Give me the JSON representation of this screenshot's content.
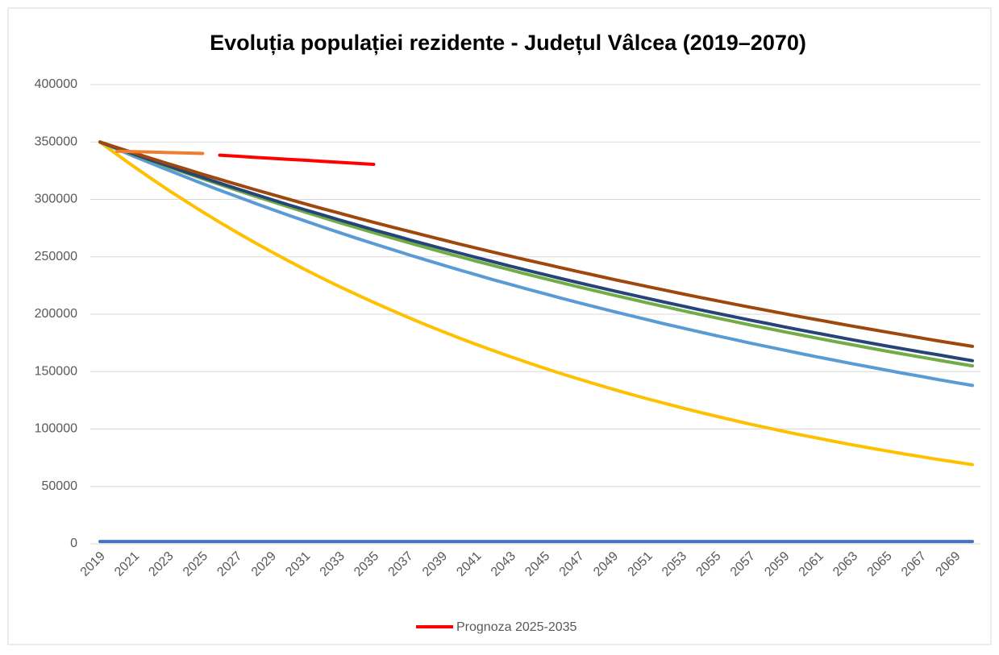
{
  "chart_data": {
    "type": "line",
    "title": "Evoluția populației rezidente - Județul Vâlcea (2019–2070)",
    "categories": [
      2019,
      null,
      2021,
      null,
      2023,
      null,
      2025,
      null,
      2027,
      null,
      2029,
      null,
      2031,
      null,
      2033,
      null,
      2035,
      null,
      2037,
      null,
      2039,
      null,
      2041,
      null,
      2043,
      null,
      2045,
      null,
      2047,
      null,
      2049,
      null,
      2051,
      null,
      2053,
      null,
      2055,
      null,
      2057,
      null,
      2059,
      null,
      2061,
      null,
      2063,
      null,
      2065,
      null,
      2067,
      null,
      2069,
      null
    ],
    "ylim": [
      0,
      400000
    ],
    "yticks": [
      0,
      50000,
      100000,
      150000,
      200000,
      250000,
      300000,
      350000,
      400000
    ],
    "grid": true,
    "legend": "bottom",
    "series": [
      {
        "color": "#ffc000",
        "values": [
          350000,
          339000,
          328400,
          318100,
          308100,
          298500,
          289100,
          280100,
          271300,
          262800,
          254500,
          246600,
          238800,
          231300,
          224100,
          217100,
          210300,
          203700,
          197300,
          191100,
          185100,
          179300,
          173700,
          168300,
          163000,
          157900,
          152900,
          148100,
          143500,
          139000,
          134600,
          130400,
          126300,
          122400,
          118500,
          114800,
          111200,
          107700,
          104300,
          101100,
          97900,
          94800,
          91900,
          89000,
          86200,
          83500,
          80900,
          78300,
          75900,
          73500,
          71200,
          69000
        ]
      },
      {
        "color": "#5b9bd5",
        "values": [
          350000,
          343700,
          337500,
          331400,
          325400,
          319500,
          313700,
          308000,
          302500,
          297000,
          291600,
          286300,
          281200,
          276100,
          271100,
          266200,
          261400,
          256700,
          252000,
          247500,
          243000,
          238600,
          234300,
          230000,
          225900,
          221800,
          217800,
          213800,
          210000,
          206200,
          202400,
          198800,
          195200,
          191600,
          188200,
          184800,
          181400,
          178200,
          174900,
          171800,
          168700,
          165600,
          162600,
          159700,
          156800,
          154000,
          151200,
          148400,
          145800,
          143100,
          140500,
          138000
        ]
      },
      {
        "color": "#70ad47",
        "values": [
          350000,
          344500,
          339000,
          333600,
          328300,
          323100,
          318000,
          313000,
          308000,
          303100,
          298300,
          293600,
          288900,
          284300,
          279800,
          275400,
          271000,
          266700,
          262500,
          258300,
          254200,
          250200,
          246200,
          242300,
          238500,
          234700,
          231000,
          227300,
          223700,
          220200,
          216700,
          213300,
          209900,
          206600,
          203300,
          200100,
          196900,
          193800,
          190700,
          187700,
          184700,
          181800,
          178900,
          176100,
          173300,
          170500,
          167800,
          165200,
          162600,
          160000,
          157500,
          155000
        ]
      },
      {
        "color": "#264478",
        "values": [
          350000,
          344600,
          339400,
          334200,
          329100,
          324000,
          319100,
          314200,
          309400,
          304700,
          300000,
          295400,
          290900,
          286500,
          282100,
          277800,
          273500,
          269400,
          265200,
          261200,
          257200,
          253300,
          249400,
          245600,
          241800,
          238100,
          234500,
          230900,
          227400,
          223900,
          220500,
          217100,
          213800,
          210500,
          207300,
          204100,
          201000,
          198000,
          194900,
          192000,
          189000,
          186100,
          183300,
          180500,
          177700,
          175000,
          172300,
          169700,
          167100,
          164600,
          162000,
          159500
        ]
      },
      {
        "color": "#9e480e",
        "values": [
          350000,
          345200,
          340400,
          335700,
          331000,
          326500,
          321900,
          317500,
          313100,
          308800,
          304500,
          300300,
          296100,
          292000,
          288000,
          284000,
          280100,
          276200,
          272400,
          268600,
          264900,
          261200,
          257600,
          254000,
          250500,
          247100,
          243700,
          240300,
          237000,
          233700,
          230400,
          227200,
          224100,
          221000,
          217900,
          214900,
          211900,
          209000,
          206100,
          203300,
          200500,
          197700,
          195000,
          192300,
          189600,
          187000,
          184400,
          181900,
          179300,
          176800,
          174400,
          172000
        ]
      },
      {
        "color": "#4472c4",
        "values": [
          2000,
          2000,
          2000,
          2000,
          2000,
          2000,
          2000,
          2000,
          2000,
          2000,
          2000,
          2000,
          2000,
          2000,
          2000,
          2000,
          2000,
          2000,
          2000,
          2000,
          2000,
          2000,
          2000,
          2000,
          2000,
          2000,
          2000,
          2000,
          2000,
          2000,
          2000,
          2000,
          2000,
          2000,
          2000,
          2000,
          2000,
          2000,
          2000,
          2000,
          2000,
          2000,
          2000,
          2000,
          2000,
          2000,
          2000,
          2000,
          2000,
          2000,
          2000,
          2000
        ]
      },
      {
        "color": "#ed7d31",
        "values": [
          null,
          342000,
          341600,
          341200,
          340800,
          340400,
          340000,
          null,
          null,
          null,
          null,
          null,
          null,
          null,
          null,
          null,
          null,
          null,
          null,
          null,
          null,
          null,
          null,
          null,
          null,
          null,
          null,
          null,
          null,
          null,
          null,
          null,
          null,
          null,
          null,
          null,
          null,
          null,
          null,
          null,
          null,
          null,
          null,
          null,
          null,
          null,
          null,
          null,
          null,
          null,
          null,
          null
        ]
      },
      {
        "name": "Prognoza 2025-2035",
        "color": "#ff0000",
        "values": [
          null,
          null,
          null,
          null,
          null,
          null,
          null,
          338500,
          337600,
          336700,
          335800,
          334900,
          334100,
          333200,
          332300,
          331400,
          330500,
          null,
          null,
          null,
          null,
          null,
          null,
          null,
          null,
          null,
          null,
          null,
          null,
          null,
          null,
          null,
          null,
          null,
          null,
          null,
          null,
          null,
          null,
          null,
          null,
          null,
          null,
          null,
          null,
          null,
          null,
          null,
          null,
          null,
          null,
          null
        ]
      }
    ]
  }
}
